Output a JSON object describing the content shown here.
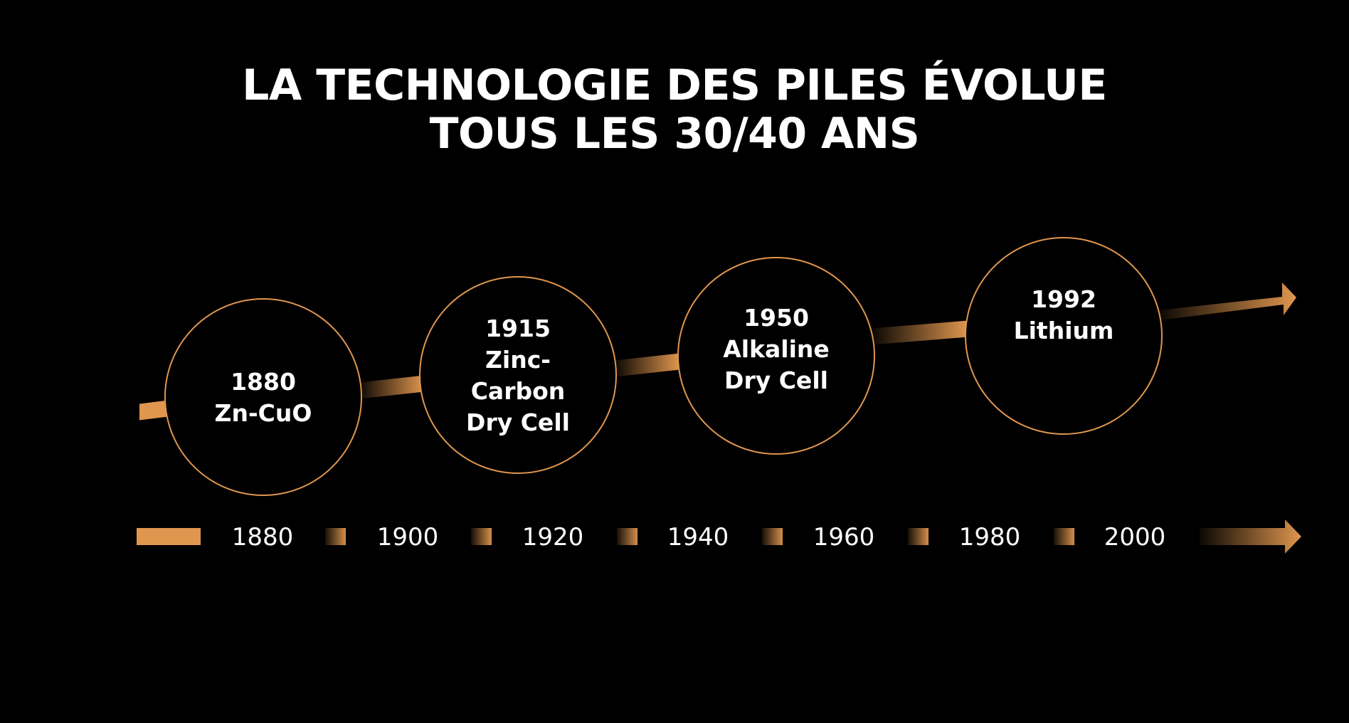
{
  "title": {
    "line1": "LA TECHNOLOGIE DES PILES ÉVOLUE",
    "line2": "TOUS LES 30/40 ANS"
  },
  "colors": {
    "background": "#000000",
    "accent": "#e0964e",
    "text": "#ffffff"
  },
  "milestones": [
    {
      "lines": [
        "1880",
        "Zn-CuO"
      ]
    },
    {
      "lines": [
        "1915",
        "Zinc-",
        "Carbon",
        "Dry Cell"
      ]
    },
    {
      "lines": [
        "1950",
        "Alkaline",
        "Dry Cell"
      ]
    },
    {
      "lines": [
        "1992",
        "Lithium"
      ]
    }
  ],
  "axis_years": [
    "1880",
    "1900",
    "1920",
    "1940",
    "1960",
    "1980",
    "2000"
  ]
}
